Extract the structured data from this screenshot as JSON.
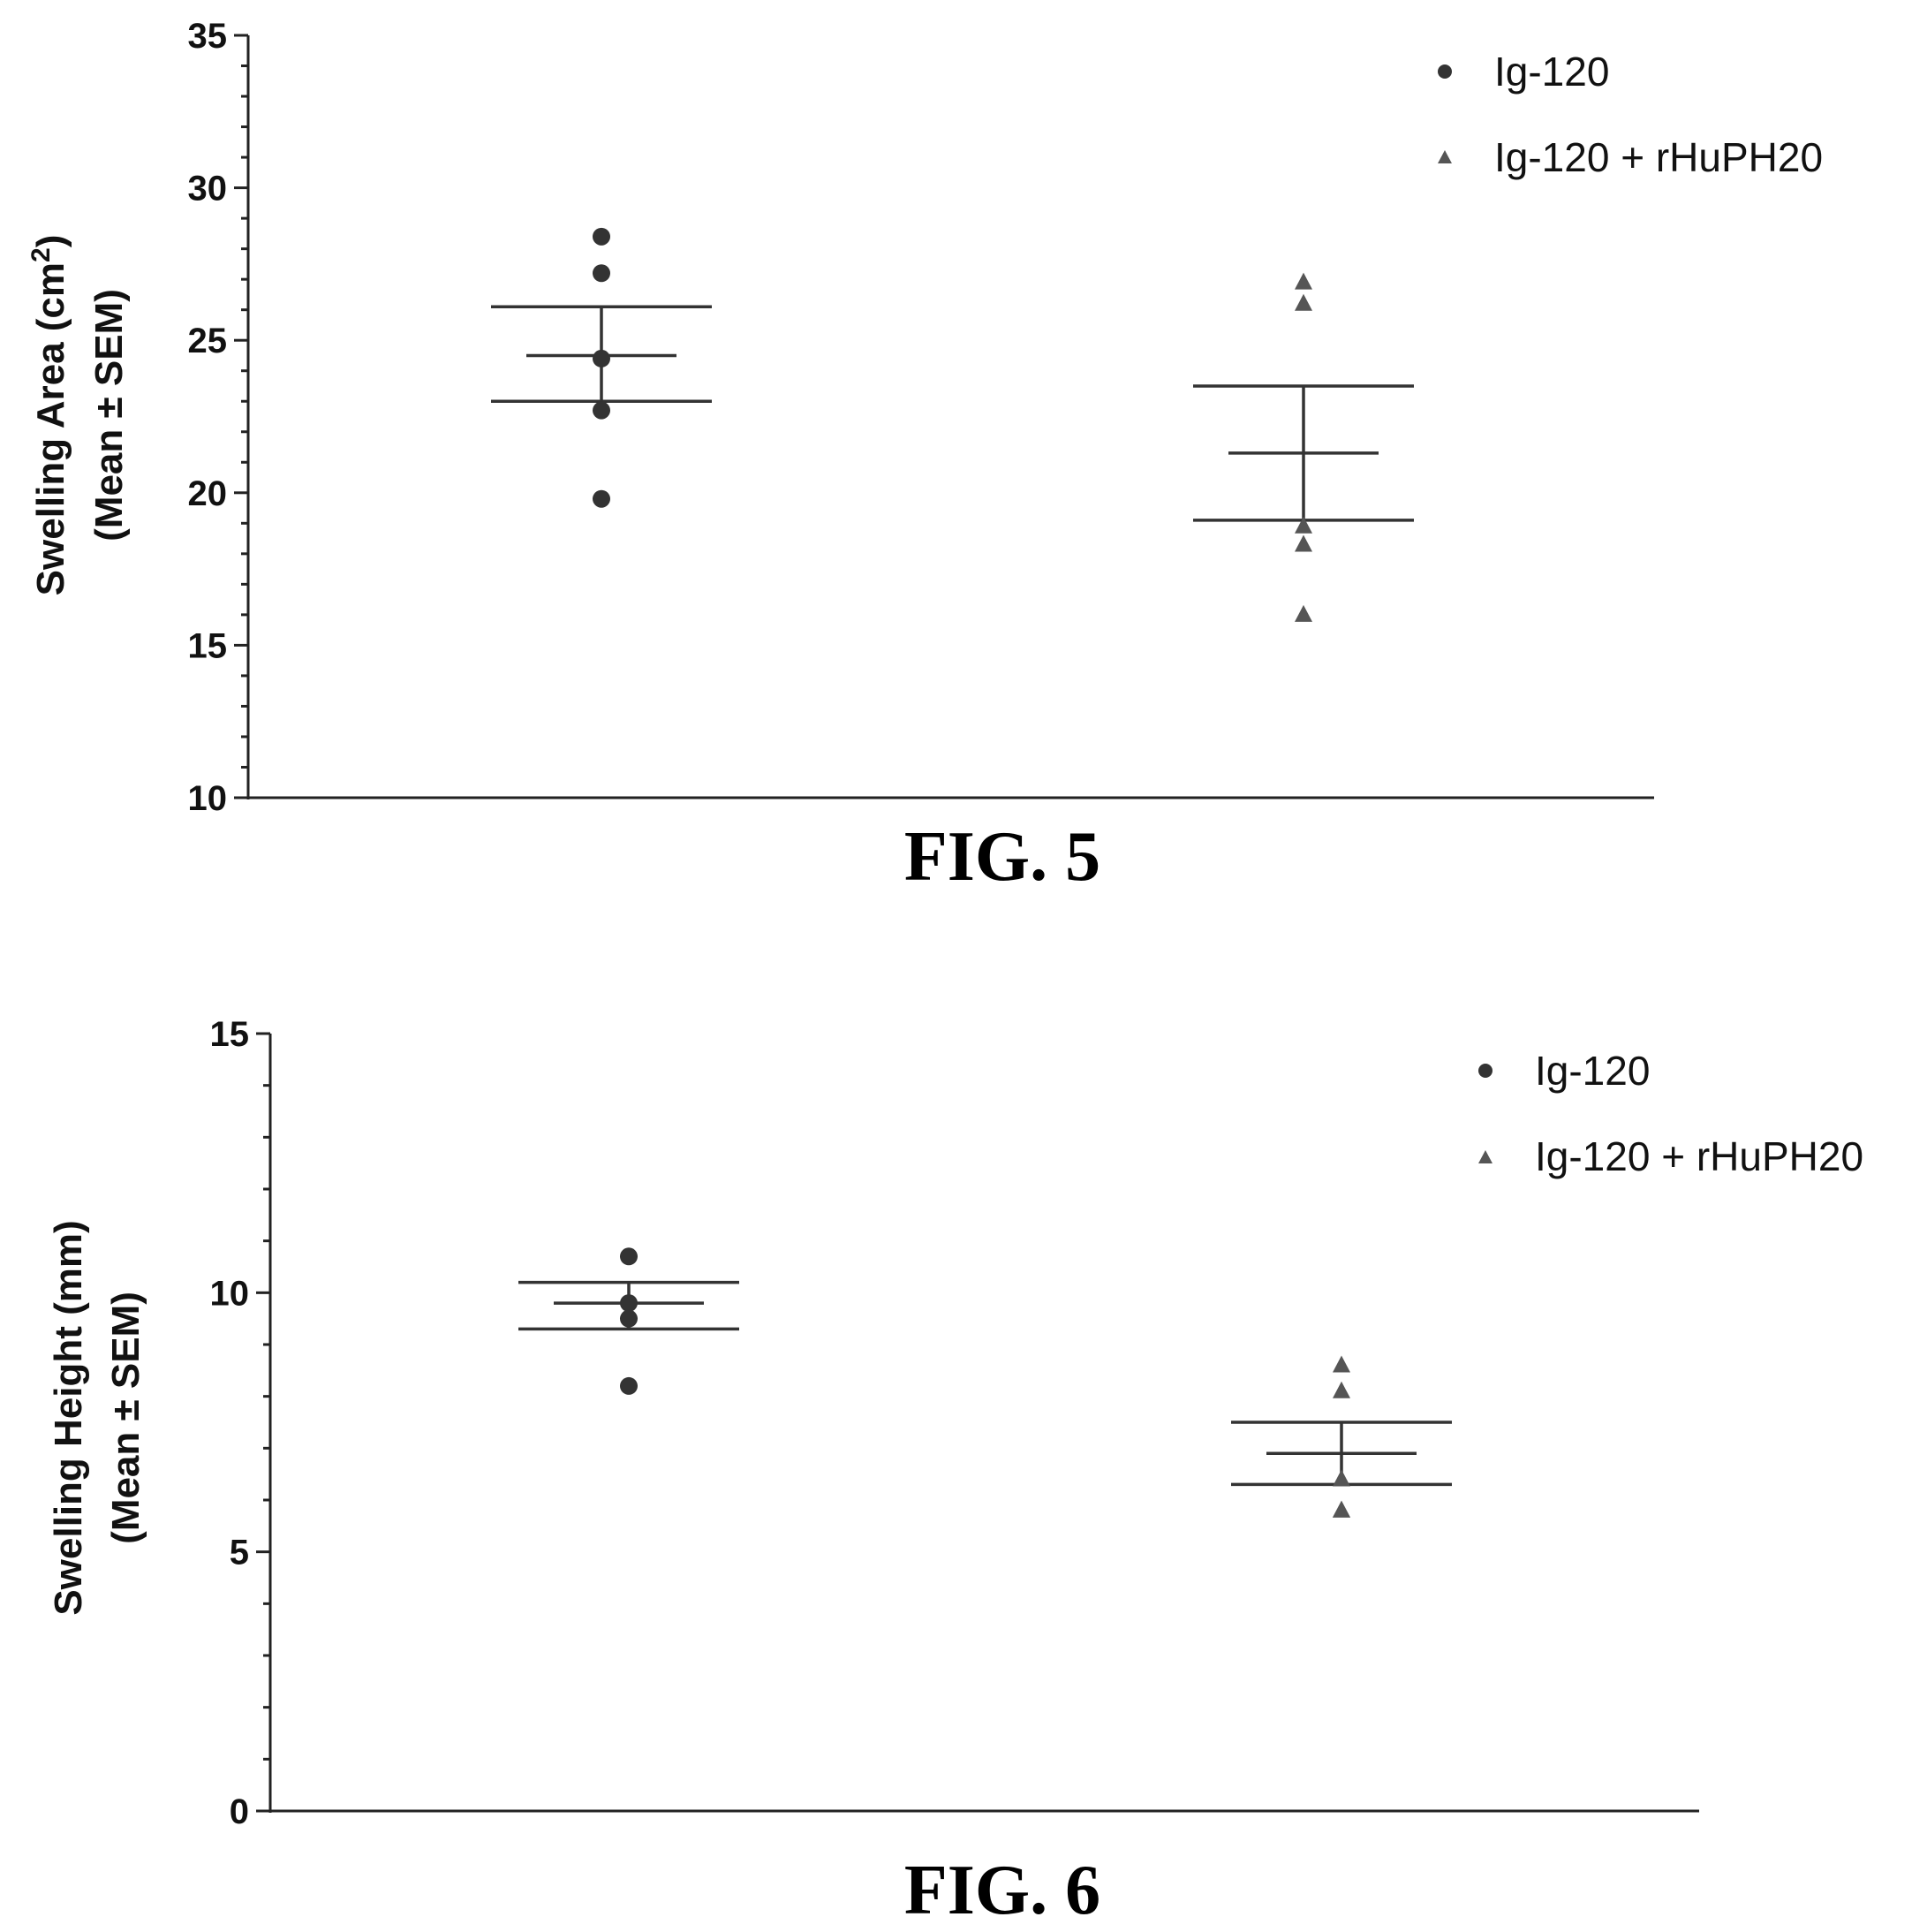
{
  "chart_data": [
    {
      "type": "scatter",
      "caption": "FIG. 5",
      "ylabel_line1": "Swelling Area (cm",
      "ylabel_sup": "2",
      "ylabel_line1_end": ")",
      "ylabel_line2": "(Mean ± SEM)",
      "ylim": [
        10,
        35
      ],
      "yticks": [
        10,
        15,
        20,
        25,
        30,
        35
      ],
      "series": [
        {
          "name": "Ig-120",
          "marker": "circle",
          "color": "#333333",
          "points": [
            28.4,
            27.2,
            24.4,
            22.7,
            19.8
          ],
          "mean": 24.5,
          "sem_upper": 26.1,
          "sem_lower": 23.0
        },
        {
          "name": "Ig-120 + rHuPH20",
          "marker": "triangle",
          "color": "#555555",
          "points": [
            26.9,
            26.2,
            18.9,
            18.3,
            16.0
          ],
          "mean": 21.3,
          "sem_upper": 23.5,
          "sem_lower": 19.1
        }
      ]
    },
    {
      "type": "scatter",
      "caption": "FIG. 6",
      "ylabel_line1": "Swelling Height (mm)",
      "ylabel_line2": "(Mean ± SEM)",
      "ylim": [
        0,
        15
      ],
      "yticks": [
        0,
        5,
        10,
        15
      ],
      "series": [
        {
          "name": "Ig-120",
          "marker": "circle",
          "color": "#333333",
          "points": [
            10.7,
            9.8,
            9.5,
            8.2
          ],
          "mean": 9.8,
          "sem_upper": 10.2,
          "sem_lower": 9.3
        },
        {
          "name": "Ig-120 + rHuPH20",
          "marker": "triangle",
          "color": "#555555",
          "points": [
            8.6,
            8.1,
            6.4,
            5.8,
            5.8
          ],
          "mean": 6.9,
          "sem_upper": 7.5,
          "sem_lower": 6.3
        }
      ]
    }
  ]
}
